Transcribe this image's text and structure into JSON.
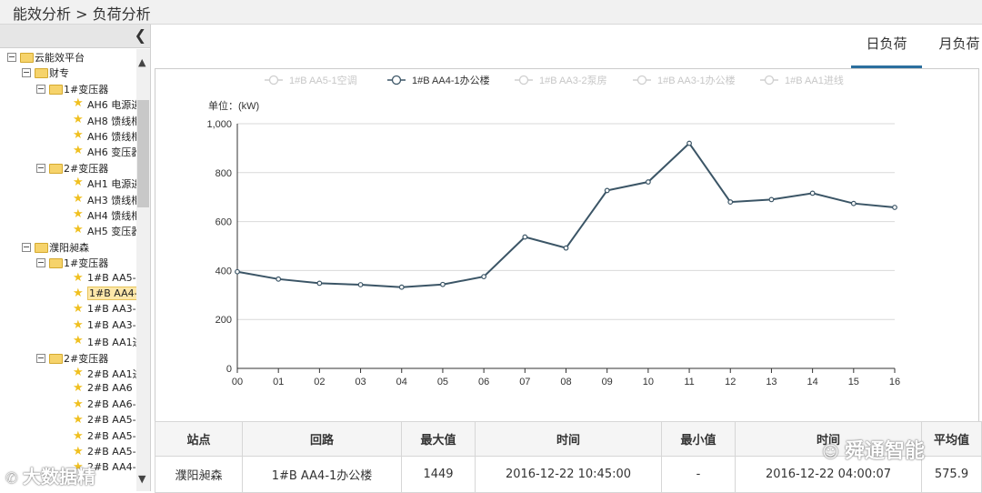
{
  "breadcrumb": "能效分析 > 负荷分析",
  "sidebar": {
    "collapse_icon": "chevron-left-icon",
    "tree": [
      {
        "level": 0,
        "kind": "folder",
        "label": "云能效平台"
      },
      {
        "level": 1,
        "kind": "folder",
        "label": "财专"
      },
      {
        "level": 2,
        "kind": "folder",
        "label": "1#变压器"
      },
      {
        "level": 3,
        "kind": "star",
        "label": "AH6 电源进"
      },
      {
        "level": 3,
        "kind": "star",
        "label": "AH8 馈线柜"
      },
      {
        "level": 3,
        "kind": "star",
        "label": "AH6 馈线柜"
      },
      {
        "level": 3,
        "kind": "star",
        "label": "AH6 变压器"
      },
      {
        "level": 2,
        "kind": "folder",
        "label": "2#变压器"
      },
      {
        "level": 3,
        "kind": "star",
        "label": "AH1 电源进"
      },
      {
        "level": 3,
        "kind": "star",
        "label": "AH3 馈线柜"
      },
      {
        "level": 3,
        "kind": "star",
        "label": "AH4 馈线柜"
      },
      {
        "level": 3,
        "kind": "star",
        "label": "AH5 变压器"
      },
      {
        "level": 1,
        "kind": "folder",
        "label": "濮阳昶森"
      },
      {
        "level": 2,
        "kind": "folder",
        "label": "1#变压器"
      },
      {
        "level": 3,
        "kind": "star",
        "label": "1#B AA5-"
      },
      {
        "level": 3,
        "kind": "star",
        "label": "1#B AA4-",
        "selected": true
      },
      {
        "level": 3,
        "kind": "star",
        "label": "1#B AA3-"
      },
      {
        "level": 3,
        "kind": "star",
        "label": "1#B AA3-"
      },
      {
        "level": 3,
        "kind": "star",
        "label": "1#B AA1进"
      },
      {
        "level": 2,
        "kind": "folder",
        "label": "2#变压器"
      },
      {
        "level": 3,
        "kind": "star",
        "label": "2#B AA1进"
      },
      {
        "level": 3,
        "kind": "star",
        "label": "2#B AA6"
      },
      {
        "level": 3,
        "kind": "star",
        "label": "2#B AA6-"
      },
      {
        "level": 3,
        "kind": "star",
        "label": "2#B AA5-"
      },
      {
        "level": 3,
        "kind": "star",
        "label": "2#B AA5-"
      },
      {
        "level": 3,
        "kind": "star",
        "label": "2#B AA5-"
      },
      {
        "level": 3,
        "kind": "star",
        "label": "2#B AA4-"
      }
    ]
  },
  "tabs": [
    {
      "label": "日负荷",
      "active": true
    },
    {
      "label": "月负荷",
      "active": false
    }
  ],
  "chart_data": {
    "type": "line",
    "legend": [
      {
        "name": "1#B AA5-1空调",
        "active": false
      },
      {
        "name": "1#B AA4-1办公楼",
        "active": true
      },
      {
        "name": "1#B AA3-2泵房",
        "active": false
      },
      {
        "name": "1#B AA3-1办公楼",
        "active": false
      },
      {
        "name": "1#B AA1进线",
        "active": false
      }
    ],
    "unit_label": "单位：(kW)",
    "x": [
      "00",
      "01",
      "02",
      "03",
      "04",
      "05",
      "06",
      "07",
      "08",
      "09",
      "10",
      "11",
      "12",
      "13",
      "14",
      "15",
      "16"
    ],
    "series": [
      {
        "name": "1#B AA4-1办公楼",
        "values": [
          395,
          365,
          348,
          342,
          332,
          343,
          375,
          537,
          492,
          727,
          762,
          920,
          680,
          690,
          716,
          674,
          658
        ]
      }
    ],
    "ylim": [
      0,
      1000
    ],
    "yticks": [
      "0",
      "200",
      "400",
      "600",
      "800",
      "1,000"
    ],
    "grid": true,
    "legend_position": "top",
    "line_color": "#3b5566"
  },
  "table": {
    "headers": [
      "站点",
      "回路",
      "最大值",
      "时间",
      "最小值",
      "时间",
      "平均值"
    ],
    "rows": [
      [
        "濮阳昶森",
        "1#B AA4-1办公楼",
        "1449",
        "2016-12-22 10:45:00",
        "-",
        "2016-12-22 04:00:07",
        "575.9"
      ]
    ]
  },
  "watermarks": {
    "left": "大数据精",
    "right": "舜通智能"
  }
}
